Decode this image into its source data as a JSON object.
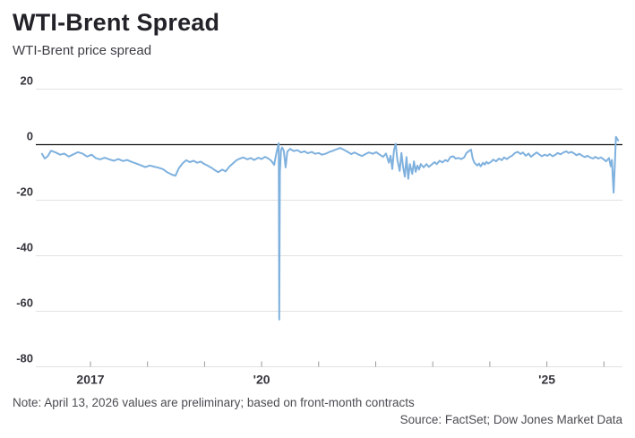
{
  "chart_data": {
    "type": "line",
    "title": "WTI-Brent Spread",
    "subtitle": "WTI-Brent price spread",
    "note": "Note: April 13, 2026 values are preliminary; based on front-month contracts",
    "source": "Source: FactSet; Dow Jones Market Data",
    "ylim": [
      -80,
      20
    ],
    "yticks": [
      20,
      0,
      -20,
      -40,
      -60,
      -80
    ],
    "xlim_years": [
      2016.1,
      2026.33
    ],
    "xticks_years": [
      2017,
      2018,
      2019,
      2020,
      2021,
      2022,
      2023,
      2024,
      2025,
      2026
    ],
    "xtick_labels": [
      {
        "year": 2017,
        "label": "2017"
      },
      {
        "year": 2020,
        "label": "'20"
      },
      {
        "year": 2025,
        "label": "'25"
      }
    ],
    "grid": "horizontal",
    "legend": "none",
    "line_color": "#7FB1DE",
    "grid_color": "#e2e2e2",
    "zero_line_color": "#111111",
    "tick_color": "#9a9aa0",
    "series": [
      {
        "name": "WTI-Brent price spread",
        "points": [
          [
            2016.15,
            -3.3
          ],
          [
            2016.2,
            -5.0
          ],
          [
            2016.25,
            -4.2
          ],
          [
            2016.31,
            -2.2
          ],
          [
            2016.39,
            -2.8
          ],
          [
            2016.47,
            -3.6
          ],
          [
            2016.54,
            -3.2
          ],
          [
            2016.62,
            -4.3
          ],
          [
            2016.7,
            -3.5
          ],
          [
            2016.78,
            -2.7
          ],
          [
            2016.86,
            -3.2
          ],
          [
            2016.94,
            -4.3
          ],
          [
            2017.02,
            -3.6
          ],
          [
            2017.09,
            -4.8
          ],
          [
            2017.17,
            -5.3
          ],
          [
            2017.25,
            -4.7
          ],
          [
            2017.33,
            -5.3
          ],
          [
            2017.41,
            -5.8
          ],
          [
            2017.49,
            -5.2
          ],
          [
            2017.57,
            -5.9
          ],
          [
            2017.64,
            -5.5
          ],
          [
            2017.72,
            -6.2
          ],
          [
            2017.8,
            -6.8
          ],
          [
            2017.88,
            -7.4
          ],
          [
            2017.96,
            -8.1
          ],
          [
            2018.04,
            -7.5
          ],
          [
            2018.11,
            -7.9
          ],
          [
            2018.19,
            -8.3
          ],
          [
            2018.27,
            -8.8
          ],
          [
            2018.35,
            -10.0
          ],
          [
            2018.43,
            -10.8
          ],
          [
            2018.49,
            -11.2
          ],
          [
            2018.55,
            -8.5
          ],
          [
            2018.62,
            -6.6
          ],
          [
            2018.68,
            -5.6
          ],
          [
            2018.74,
            -6.3
          ],
          [
            2018.81,
            -5.8
          ],
          [
            2018.87,
            -6.5
          ],
          [
            2018.93,
            -6.1
          ],
          [
            2018.99,
            -6.9
          ],
          [
            2019.06,
            -7.6
          ],
          [
            2019.12,
            -8.3
          ],
          [
            2019.18,
            -9.2
          ],
          [
            2019.24,
            -9.9
          ],
          [
            2019.31,
            -9.0
          ],
          [
            2019.37,
            -9.6
          ],
          [
            2019.43,
            -8.0
          ],
          [
            2019.5,
            -6.7
          ],
          [
            2019.56,
            -5.6
          ],
          [
            2019.62,
            -5.0
          ],
          [
            2019.68,
            -4.6
          ],
          [
            2019.75,
            -5.3
          ],
          [
            2019.81,
            -4.8
          ],
          [
            2019.87,
            -5.5
          ],
          [
            2019.94,
            -4.7
          ],
          [
            2020.0,
            -5.2
          ],
          [
            2020.06,
            -4.4
          ],
          [
            2020.12,
            -5.0
          ],
          [
            2020.17,
            -5.8
          ],
          [
            2020.22,
            -7.3
          ],
          [
            2020.25,
            -4.0
          ],
          [
            2020.28,
            -1.2
          ],
          [
            2020.3,
            0.5
          ],
          [
            2020.31,
            -63.0
          ],
          [
            2020.32,
            -10.0
          ],
          [
            2020.34,
            -2.0
          ],
          [
            2020.36,
            -1.0
          ],
          [
            2020.39,
            -2.3
          ],
          [
            2020.42,
            -8.2
          ],
          [
            2020.45,
            -2.5
          ],
          [
            2020.5,
            -1.5
          ],
          [
            2020.56,
            -2.3
          ],
          [
            2020.63,
            -2.0
          ],
          [
            2020.69,
            -2.8
          ],
          [
            2020.75,
            -2.4
          ],
          [
            2020.81,
            -3.1
          ],
          [
            2020.88,
            -2.6
          ],
          [
            2020.94,
            -3.3
          ],
          [
            2021.0,
            -3.0
          ],
          [
            2021.06,
            -3.6
          ],
          [
            2021.13,
            -3.2
          ],
          [
            2021.19,
            -2.6
          ],
          [
            2021.25,
            -2.2
          ],
          [
            2021.32,
            -1.6
          ],
          [
            2021.38,
            -1.2
          ],
          [
            2021.44,
            -1.8
          ],
          [
            2021.51,
            -2.6
          ],
          [
            2021.57,
            -3.4
          ],
          [
            2021.63,
            -2.8
          ],
          [
            2021.69,
            -3.5
          ],
          [
            2021.76,
            -4.1
          ],
          [
            2021.82,
            -3.4
          ],
          [
            2021.88,
            -2.8
          ],
          [
            2021.95,
            -3.3
          ],
          [
            2022.01,
            -2.7
          ],
          [
            2022.07,
            -3.6
          ],
          [
            2022.13,
            -4.4
          ],
          [
            2022.18,
            -3.2
          ],
          [
            2022.23,
            -6.5
          ],
          [
            2022.26,
            -4.0
          ],
          [
            2022.29,
            -8.8
          ],
          [
            2022.32,
            -2.0
          ],
          [
            2022.35,
            0.3
          ],
          [
            2022.38,
            -5.5
          ],
          [
            2022.42,
            -9.5
          ],
          [
            2022.45,
            -3.0
          ],
          [
            2022.48,
            -8.0
          ],
          [
            2022.51,
            -11.5
          ],
          [
            2022.54,
            -4.5
          ],
          [
            2022.57,
            -12.3
          ],
          [
            2022.6,
            -7.0
          ],
          [
            2022.64,
            -10.5
          ],
          [
            2022.67,
            -6.0
          ],
          [
            2022.7,
            -9.8
          ],
          [
            2022.73,
            -7.5
          ],
          [
            2022.76,
            -9.0
          ],
          [
            2022.79,
            -7.0
          ],
          [
            2022.84,
            -8.2
          ],
          [
            2022.89,
            -7.0
          ],
          [
            2022.93,
            -8.0
          ],
          [
            2022.98,
            -7.2
          ],
          [
            2023.03,
            -6.3
          ],
          [
            2023.07,
            -7.0
          ],
          [
            2023.12,
            -5.8
          ],
          [
            2023.17,
            -6.4
          ],
          [
            2023.22,
            -5.5
          ],
          [
            2023.26,
            -6.0
          ],
          [
            2023.31,
            -4.5
          ],
          [
            2023.36,
            -4.2
          ],
          [
            2023.4,
            -5.0
          ],
          [
            2023.45,
            -4.8
          ],
          [
            2023.5,
            -5.2
          ],
          [
            2023.55,
            -4.6
          ],
          [
            2023.59,
            -3.0
          ],
          [
            2023.64,
            -2.2
          ],
          [
            2023.67,
            -1.8
          ],
          [
            2023.7,
            -5.0
          ],
          [
            2023.73,
            -6.5
          ],
          [
            2023.78,
            -7.5
          ],
          [
            2023.81,
            -6.8
          ],
          [
            2023.84,
            -7.8
          ],
          [
            2023.88,
            -6.5
          ],
          [
            2023.91,
            -7.2
          ],
          [
            2023.94,
            -6.2
          ],
          [
            2023.97,
            -6.8
          ],
          [
            2024.02,
            -6.2
          ],
          [
            2024.06,
            -5.4
          ],
          [
            2024.11,
            -6.0
          ],
          [
            2024.16,
            -5.0
          ],
          [
            2024.21,
            -5.6
          ],
          [
            2024.25,
            -4.6
          ],
          [
            2024.3,
            -5.2
          ],
          [
            2024.35,
            -4.4
          ],
          [
            2024.39,
            -4.0
          ],
          [
            2024.44,
            -3.0
          ],
          [
            2024.49,
            -2.6
          ],
          [
            2024.54,
            -3.4
          ],
          [
            2024.58,
            -2.8
          ],
          [
            2024.63,
            -4.0
          ],
          [
            2024.68,
            -3.2
          ],
          [
            2024.72,
            -4.4
          ],
          [
            2024.77,
            -3.6
          ],
          [
            2024.82,
            -2.8
          ],
          [
            2024.86,
            -3.4
          ],
          [
            2024.91,
            -4.2
          ],
          [
            2024.96,
            -3.6
          ],
          [
            2025.01,
            -4.0
          ],
          [
            2025.05,
            -3.4
          ],
          [
            2025.1,
            -4.2
          ],
          [
            2025.15,
            -3.6
          ],
          [
            2025.19,
            -3.0
          ],
          [
            2025.24,
            -3.5
          ],
          [
            2025.29,
            -2.8
          ],
          [
            2025.34,
            -2.4
          ],
          [
            2025.38,
            -3.0
          ],
          [
            2025.43,
            -2.6
          ],
          [
            2025.48,
            -3.2
          ],
          [
            2025.52,
            -3.8
          ],
          [
            2025.57,
            -3.3
          ],
          [
            2025.62,
            -4.0
          ],
          [
            2025.67,
            -4.5
          ],
          [
            2025.71,
            -4.0
          ],
          [
            2025.76,
            -4.6
          ],
          [
            2025.81,
            -5.0
          ],
          [
            2025.85,
            -4.4
          ],
          [
            2025.9,
            -5.0
          ],
          [
            2025.95,
            -4.6
          ],
          [
            2026.0,
            -5.4
          ],
          [
            2026.04,
            -6.0
          ],
          [
            2026.09,
            -4.8
          ],
          [
            2026.12,
            -7.8
          ],
          [
            2026.14,
            -5.5
          ],
          [
            2026.17,
            -17.3
          ],
          [
            2026.19,
            -8.0
          ],
          [
            2026.21,
            2.8
          ],
          [
            2026.25,
            1.5
          ]
        ]
      }
    ]
  }
}
